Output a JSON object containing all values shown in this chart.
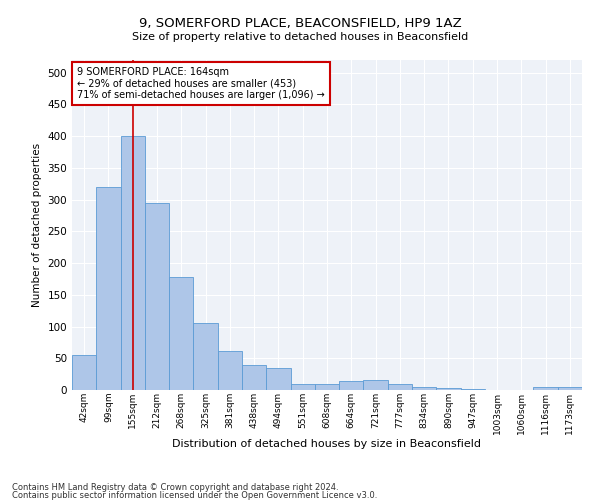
{
  "title1": "9, SOMERFORD PLACE, BEACONSFIELD, HP9 1AZ",
  "title2": "Size of property relative to detached houses in Beaconsfield",
  "xlabel": "Distribution of detached houses by size in Beaconsfield",
  "ylabel": "Number of detached properties",
  "categories": [
    "42sqm",
    "99sqm",
    "155sqm",
    "212sqm",
    "268sqm",
    "325sqm",
    "381sqm",
    "438sqm",
    "494sqm",
    "551sqm",
    "608sqm",
    "664sqm",
    "721sqm",
    "777sqm",
    "834sqm",
    "890sqm",
    "947sqm",
    "1003sqm",
    "1060sqm",
    "1116sqm",
    "1173sqm"
  ],
  "values": [
    55,
    320,
    400,
    295,
    178,
    106,
    62,
    40,
    35,
    10,
    10,
    14,
    15,
    9,
    5,
    3,
    2,
    0,
    0,
    4,
    5
  ],
  "bar_color": "#aec6e8",
  "bar_edge_color": "#5b9bd5",
  "vline_x": 2,
  "vline_color": "#cc0000",
  "annotation_text": "9 SOMERFORD PLACE: 164sqm\n← 29% of detached houses are smaller (453)\n71% of semi-detached houses are larger (1,096) →",
  "annotation_box_color": "#ffffff",
  "annotation_box_edge": "#cc0000",
  "background_color": "#eef2f8",
  "footer1": "Contains HM Land Registry data © Crown copyright and database right 2024.",
  "footer2": "Contains public sector information licensed under the Open Government Licence v3.0.",
  "ylim": [
    0,
    520
  ],
  "yticks": [
    0,
    50,
    100,
    150,
    200,
    250,
    300,
    350,
    400,
    450,
    500
  ]
}
